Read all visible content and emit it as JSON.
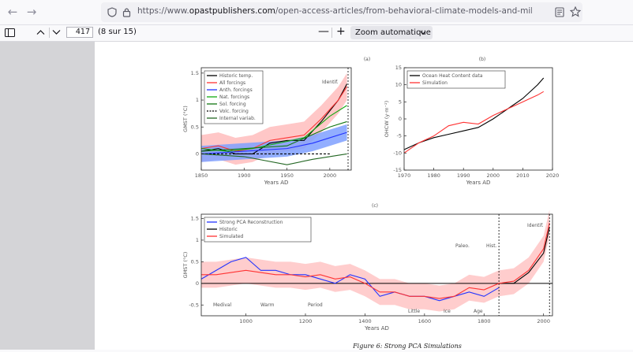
{
  "browser": {
    "url_prefix": "https://www.",
    "url_domain": "opastpublishers.com",
    "url_path": "/open-access-articles/from-behavioral-climate-models-and-millennial-data-to-agw-reasc",
    "back_icon": "arrow-left-icon",
    "forward_icon": "arrow-right-icon"
  },
  "pdf_toolbar": {
    "page_value": "417",
    "page_count": "(8 sur 15)",
    "zoom_label": "Zoom automatique"
  },
  "figure": {
    "caption": "Figure 6: Strong PCA Simulations",
    "panel_a_label": "(a)",
    "panel_b_label": "(b)",
    "panel_c_label": "(c)"
  },
  "chart_data": [
    {
      "type": "line",
      "panel": "(a)",
      "xlabel": "Years AD",
      "ylabel": "GMST (°C)",
      "xlim": [
        1850,
        2025
      ],
      "ylim": [
        -0.3,
        1.6
      ],
      "xticks": [
        "1850",
        "1900",
        "1950",
        "2000"
      ],
      "yticks": [
        "0",
        "0.5",
        "1",
        "1.5"
      ],
      "annotations": [
        "Identif."
      ],
      "legend": [
        "Historic temp.",
        "All forcings",
        "Anth. forcings",
        "Nat. forcings",
        "Sol. forcing",
        "Volc. forcing",
        "Internal variab."
      ],
      "series": [
        {
          "name": "Historic temp.",
          "color": "#000000",
          "x": [
            1850,
            1870,
            1890,
            1910,
            1930,
            1950,
            1970,
            1990,
            2010,
            2020
          ],
          "y": [
            0.05,
            0.1,
            0.0,
            0.0,
            0.2,
            0.25,
            0.25,
            0.6,
            1.0,
            1.3
          ]
        },
        {
          "name": "All forcings",
          "color": "#ff3333",
          "x": [
            1850,
            1870,
            1890,
            1910,
            1930,
            1950,
            1970,
            1990,
            2010,
            2020
          ],
          "y": [
            0.1,
            0.15,
            0.05,
            0.1,
            0.25,
            0.3,
            0.35,
            0.65,
            1.0,
            1.25
          ]
        },
        {
          "name": "Anth. forcings",
          "color": "#2233ff",
          "x": [
            1850,
            1900,
            1950,
            1980,
            2000,
            2020
          ],
          "y": [
            0.0,
            0.05,
            0.1,
            0.2,
            0.3,
            0.4
          ]
        },
        {
          "name": "Nat. forcings",
          "color": "#11aa11",
          "x": [
            1850,
            1880,
            1910,
            1940,
            1970,
            2000,
            2020
          ],
          "y": [
            0.1,
            0.05,
            0.1,
            0.2,
            0.3,
            0.7,
            0.9
          ]
        },
        {
          "name": "Sol. forcing",
          "color": "#117711",
          "x": [
            1850,
            1900,
            1950,
            2000,
            2020
          ],
          "y": [
            0.05,
            0.1,
            0.15,
            0.5,
            0.6
          ]
        },
        {
          "name": "Volc. forcing",
          "color": "#000000",
          "x": [
            1850,
            1900,
            1950,
            2000
          ],
          "y": [
            0.0,
            0.0,
            0.0,
            0.0
          ]
        },
        {
          "name": "Internal variab.",
          "color": "#226622",
          "x": [
            1850,
            1900,
            1950,
            1980,
            2020
          ],
          "y": [
            0.0,
            -0.05,
            -0.2,
            -0.1,
            0.0
          ]
        }
      ]
    },
    {
      "type": "line",
      "panel": "(b)",
      "xlabel": "Years AD",
      "ylabel": "OHCW (y·m⁻²)",
      "xlim": [
        1970,
        2020
      ],
      "ylim": [
        -15,
        15
      ],
      "xticks": [
        "1970",
        "1980",
        "1990",
        "2000",
        "2010",
        "2020"
      ],
      "yticks": [
        "-15",
        "-10",
        "-5",
        "0",
        "5",
        "10",
        "15"
      ],
      "legend": [
        "Ocean Heat Content data",
        "Simulation"
      ],
      "series": [
        {
          "name": "Ocean Heat Content data",
          "color": "#000000",
          "x": [
            1970,
            1975,
            1980,
            1985,
            1990,
            1995,
            2000,
            2005,
            2010,
            2015,
            2017
          ],
          "y": [
            -9,
            -7,
            -5.5,
            -4.5,
            -3.5,
            -2.5,
            0,
            3,
            6,
            10,
            12
          ]
        },
        {
          "name": "Simulation",
          "color": "#ff3333",
          "x": [
            1970,
            1975,
            1980,
            1985,
            1990,
            1995,
            2000,
            2005,
            2010,
            2015,
            2017
          ],
          "y": [
            -10,
            -7,
            -5,
            -2,
            -1,
            -1.5,
            1,
            3,
            5,
            7,
            8
          ]
        }
      ]
    },
    {
      "type": "line",
      "panel": "(c)",
      "xlabel": "Years AD",
      "ylabel": "GMST (°C)",
      "xlim": [
        850,
        2030
      ],
      "ylim": [
        -0.75,
        1.6
      ],
      "xticks": [
        "1000",
        "1200",
        "1400",
        "1600",
        "1800",
        "2000"
      ],
      "yticks": [
        "-0.5",
        "0",
        "0.5",
        "1",
        "1.5"
      ],
      "annotations": [
        "Identif.",
        "Paleo.",
        "Hist.",
        "Medival",
        "Warm",
        "Period",
        "Little",
        "Ice",
        "Age"
      ],
      "legend": [
        "Strong PCA Reconstruction",
        "Historic",
        "Simulated"
      ],
      "series": [
        {
          "name": "Strong PCA Reconstruction",
          "color": "#2233ff",
          "x": [
            850,
            900,
            950,
            1000,
            1050,
            1100,
            1150,
            1200,
            1250,
            1300,
            1350,
            1400,
            1450,
            1500,
            1550,
            1600,
            1650,
            1700,
            1750,
            1800,
            1850
          ],
          "y": [
            0.1,
            0.3,
            0.5,
            0.6,
            0.3,
            0.3,
            0.2,
            0.2,
            0.1,
            0.0,
            0.2,
            0.1,
            -0.3,
            -0.2,
            -0.3,
            -0.3,
            -0.4,
            -0.3,
            -0.2,
            -0.3,
            -0.1
          ]
        },
        {
          "name": "Historic",
          "color": "#000000",
          "x": [
            1850,
            1900,
            1950,
            2000,
            2020
          ],
          "y": [
            0.0,
            0.0,
            0.25,
            0.7,
            1.3
          ]
        },
        {
          "name": "Simulated",
          "color": "#ff3333",
          "x": [
            850,
            900,
            950,
            1000,
            1050,
            1100,
            1150,
            1200,
            1250,
            1300,
            1350,
            1400,
            1450,
            1500,
            1550,
            1600,
            1650,
            1700,
            1750,
            1800,
            1850,
            1900,
            1950,
            2000,
            2020
          ],
          "y": [
            0.2,
            0.2,
            0.25,
            0.3,
            0.25,
            0.2,
            0.2,
            0.15,
            0.2,
            0.1,
            0.15,
            0.0,
            -0.2,
            -0.2,
            -0.3,
            -0.3,
            -0.35,
            -0.3,
            -0.1,
            -0.15,
            0.0,
            0.05,
            0.3,
            0.8,
            1.4
          ]
        }
      ]
    }
  ]
}
